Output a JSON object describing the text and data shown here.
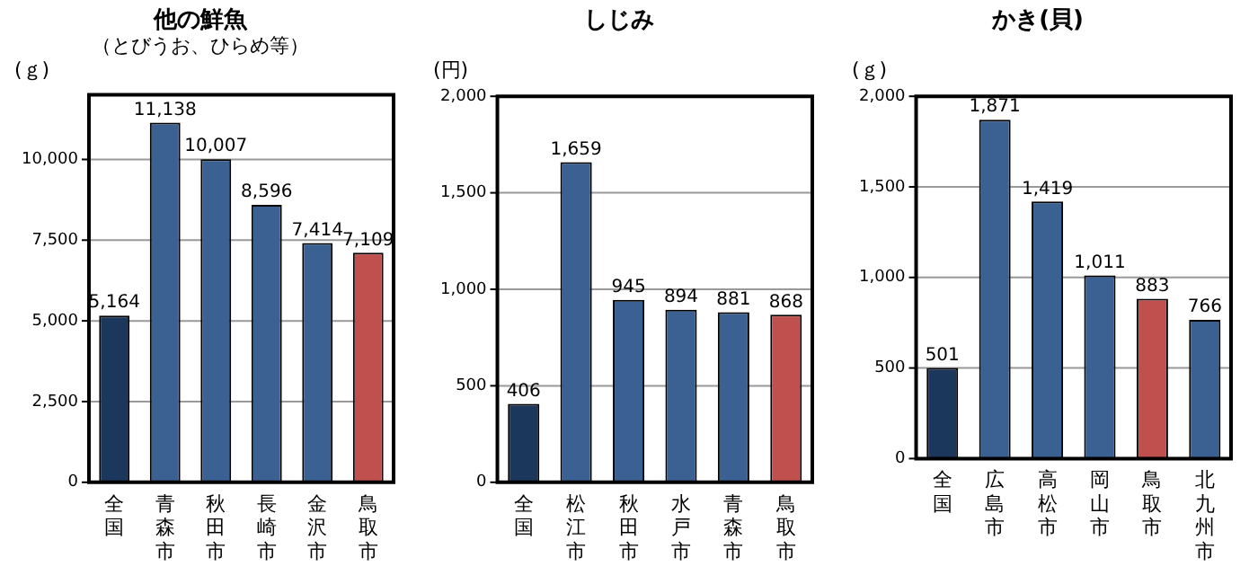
{
  "chart_data": [
    {
      "type": "bar",
      "title": "他の鮮魚",
      "subtitle": "（とびうお、ひらめ等）",
      "annotations": [
        "(ｇ)"
      ],
      "categories": [
        "全国",
        "青森市",
        "秋田市",
        "長崎市",
        "金沢市",
        "鳥取市"
      ],
      "values": [
        5164,
        11138,
        10007,
        8596,
        7414,
        7109
      ],
      "value_labels": [
        "5,164",
        "11,138",
        "10,007",
        "8,596",
        "7,414",
        "7,109"
      ],
      "colors": [
        "#1c375c",
        "#3a6191",
        "#3a6191",
        "#3a6191",
        "#3a6191",
        "#c0504d"
      ],
      "ylim": [
        0,
        12000
      ],
      "yticks": [
        {
          "value": 0,
          "label": "0"
        },
        {
          "value": 2500,
          "label": "2,500"
        },
        {
          "value": 5000,
          "label": "5,000"
        },
        {
          "value": 7500,
          "label": "7,500"
        },
        {
          "value": 10000,
          "label": "10,000"
        }
      ],
      "grid": "y",
      "legend": false
    },
    {
      "type": "bar",
      "title": "しじみ",
      "annotations": [
        "(円)"
      ],
      "categories": [
        "全国",
        "松江市",
        "秋田市",
        "水戸市",
        "青森市",
        "鳥取市"
      ],
      "values": [
        406,
        1659,
        945,
        894,
        881,
        868
      ],
      "value_labels": [
        "406",
        "1,659",
        "945",
        "894",
        "881",
        "868"
      ],
      "colors": [
        "#1c375c",
        "#3a6191",
        "#3a6191",
        "#3a6191",
        "#3a6191",
        "#c0504d"
      ],
      "ylim": [
        0,
        2000
      ],
      "yticks": [
        {
          "value": 0,
          "label": "0"
        },
        500,
        {
          "value": 1000,
          "label": "1,000"
        },
        {
          "value": 1500,
          "label": "1,500"
        },
        {
          "value": 2000,
          "label": "2,000"
        }
      ],
      "grid": "y",
      "legend": false
    },
    {
      "type": "bar",
      "title": "かき(貝)",
      "annotations": [
        "(ｇ)"
      ],
      "categories": [
        "全国",
        "広島市",
        "高松市",
        "岡山市",
        "鳥取市",
        "北九州市"
      ],
      "values": [
        501,
        1871,
        1419,
        1011,
        883,
        766
      ],
      "value_labels": [
        "501",
        "1,871",
        "1,419",
        "1,011",
        "883",
        "766"
      ],
      "colors": [
        "#1c375c",
        "#3a6191",
        "#3a6191",
        "#3a6191",
        "#c0504d",
        "#3a6191"
      ],
      "ylim": [
        0,
        2000
      ],
      "yticks": [
        {
          "value": 0,
          "label": "0"
        },
        500,
        {
          "value": 1000,
          "label": "1,000"
        },
        {
          "value": 1500,
          "label": "1,500"
        },
        {
          "value": 2000,
          "label": "2,000"
        }
      ],
      "grid": "y",
      "legend": false
    }
  ]
}
